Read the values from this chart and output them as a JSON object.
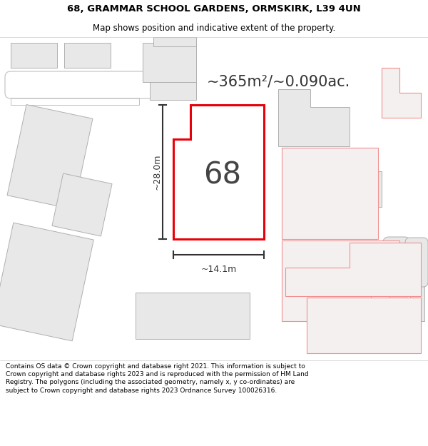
{
  "title_line1": "68, GRAMMAR SCHOOL GARDENS, ORMSKIRK, L39 4UN",
  "title_line2": "Map shows position and indicative extent of the property.",
  "area_text": "~365m²/~0.090ac.",
  "property_number": "68",
  "dim_width": "~14.1m",
  "dim_height": "~28.0m",
  "footer_text": "Contains OS data © Crown copyright and database right 2021. This information is subject to Crown copyright and database rights 2023 and is reproduced with the permission of HM Land Registry. The polygons (including the associated geometry, namely x, y co-ordinates) are subject to Crown copyright and database rights 2023 Ordnance Survey 100026316.",
  "map_bg": "#ffffff",
  "property_fill": "#ffffff",
  "property_edge": "#e8000a",
  "header_bg": "#ffffff",
  "footer_bg": "#ffffff",
  "neighbor_fill": "#e8e8e8",
  "neighbor_edge_dark": "#b0b0b0",
  "neighbor_edge_pink": "#f09090",
  "title_fontsize": 9.5,
  "subtitle_fontsize": 8.5,
  "footer_fontsize": 6.5
}
